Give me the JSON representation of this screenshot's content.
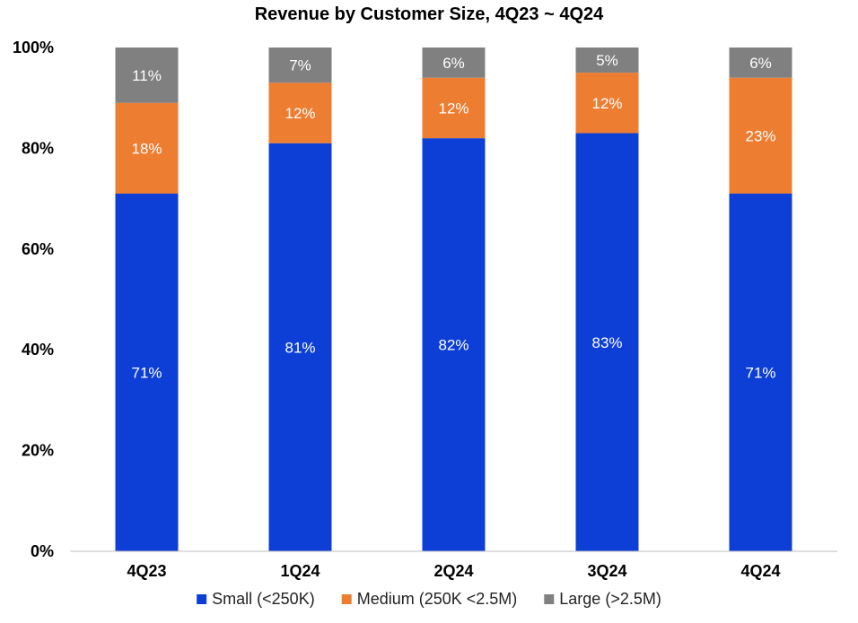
{
  "chart_data": {
    "type": "bar",
    "stacked": true,
    "title": "Revenue by Customer Size, 4Q23 ~ 4Q24",
    "xlabel": "",
    "ylabel": "",
    "ylim": [
      0,
      100
    ],
    "yticks": [
      "0%",
      "20%",
      "40%",
      "60%",
      "80%",
      "100%"
    ],
    "grid": false,
    "legend_position": "bottom",
    "categories": [
      "4Q23",
      "1Q24",
      "2Q24",
      "3Q24",
      "4Q24"
    ],
    "series": [
      {
        "name": "Small (<250K)",
        "color": "#0d3fd6",
        "values": [
          71,
          81,
          82,
          83,
          71
        ],
        "labels": [
          "71%",
          "81%",
          "82%",
          "83%",
          "71%"
        ]
      },
      {
        "name": "Medium (250K <2.5M)",
        "color": "#ed7d31",
        "values": [
          18,
          12,
          12,
          12,
          23
        ],
        "labels": [
          "18%",
          "12%",
          "12%",
          "12%",
          "23%"
        ]
      },
      {
        "name": "Large (>2.5M)",
        "color": "#808080",
        "values": [
          11,
          7,
          6,
          5,
          6
        ],
        "labels": [
          "11%",
          "7%",
          "6%",
          "5%",
          "6%"
        ]
      }
    ]
  }
}
